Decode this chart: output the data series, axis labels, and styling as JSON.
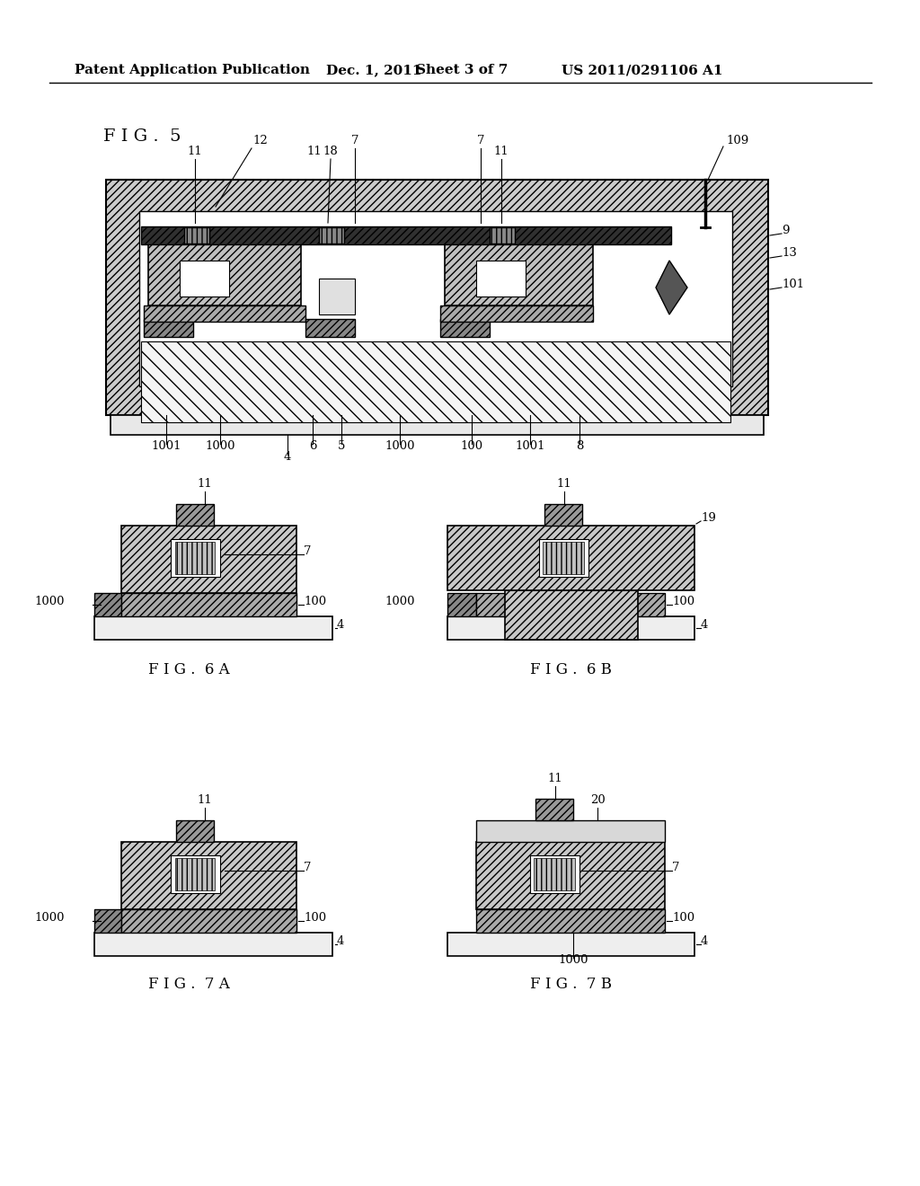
{
  "bg_color": "#ffffff",
  "header_text": "Patent Application Publication",
  "header_date": "Dec. 1, 2011",
  "header_sheet": "Sheet 3 of 7",
  "header_patent": "US 2011/0291106 A1",
  "fig5_label": "F I G .  5",
  "fig6a_label": "F I G .  6 A",
  "fig6b_label": "F I G .  6 B",
  "fig7a_label": "F I G .  7 A",
  "fig7b_label": "F I G .  7 B"
}
